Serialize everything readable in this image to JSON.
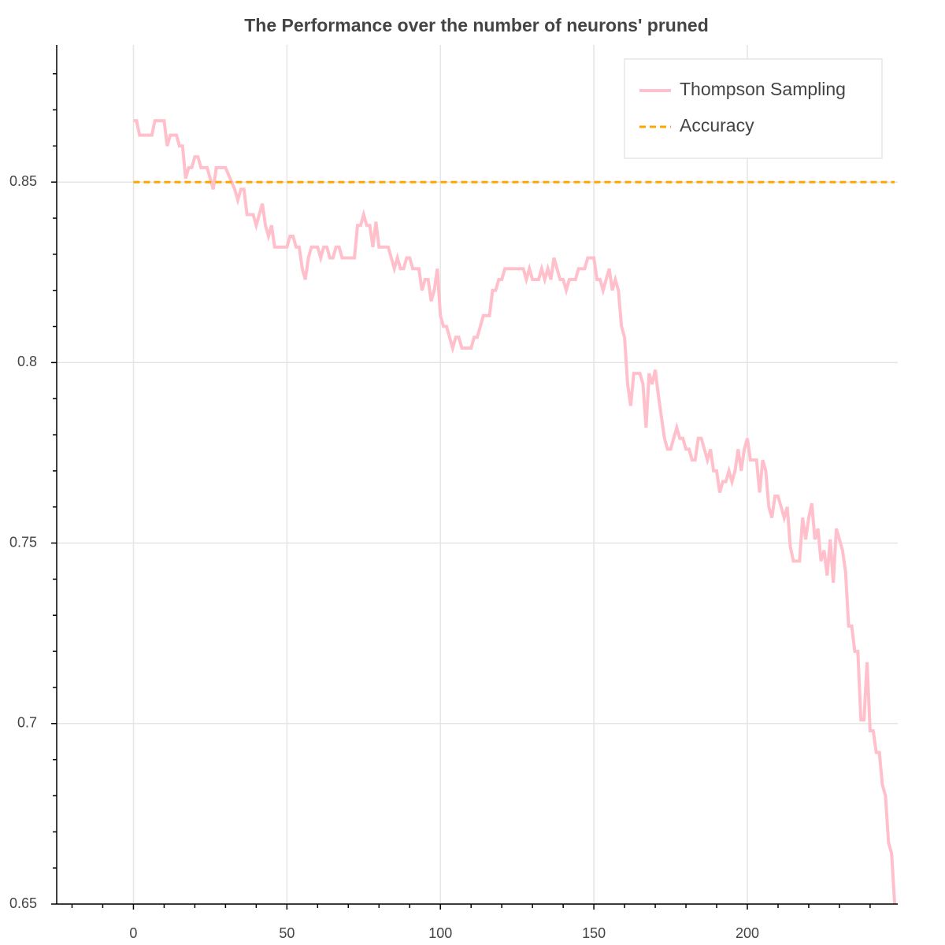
{
  "chart_data": {
    "type": "line",
    "title": "The Performance over the number of neurons' pruned",
    "xlim": [
      -25,
      249
    ],
    "ylim": [
      0.65,
      0.888
    ],
    "xticks": [
      0,
      50,
      100,
      150,
      200
    ],
    "yticks": [
      0.65,
      0.7,
      0.75,
      0.8,
      0.85
    ],
    "xminor_ticks": [
      -20,
      -10,
      10,
      20,
      30,
      40,
      60,
      70,
      80,
      90,
      110,
      120,
      130,
      140,
      160,
      170,
      180,
      190,
      210,
      220,
      230,
      240
    ],
    "yminor_ticks": [
      0.66,
      0.67,
      0.68,
      0.69,
      0.71,
      0.72,
      0.73,
      0.74,
      0.76,
      0.77,
      0.78,
      0.79,
      0.81,
      0.82,
      0.83,
      0.84,
      0.86,
      0.87,
      0.88
    ],
    "grid": true,
    "legend_position": "top-right",
    "series": [
      {
        "name": "Thompson Sampling",
        "color": "#ffc0cb",
        "dash": false,
        "x": [
          0,
          1,
          2,
          6,
          7,
          10,
          11,
          12,
          14,
          15,
          16,
          17,
          18,
          19,
          20,
          21,
          22,
          24,
          26,
          27,
          30,
          32,
          33,
          34,
          35,
          36,
          37,
          39,
          40,
          41,
          42,
          43,
          44,
          45,
          46,
          50,
          51,
          52,
          53,
          54,
          55,
          56,
          57,
          58,
          60,
          61,
          62,
          63,
          64,
          65,
          66,
          67,
          68,
          72,
          73,
          74,
          75,
          76,
          77,
          78,
          79,
          80,
          83,
          84,
          85,
          86,
          87,
          88,
          89,
          90,
          91,
          93,
          94,
          95,
          96,
          97,
          98,
          99,
          100,
          101,
          102,
          103,
          104,
          105,
          106,
          107,
          110,
          111,
          112,
          113,
          114,
          116,
          117,
          118,
          119,
          120,
          121,
          127,
          128,
          129,
          130,
          132,
          133,
          134,
          135,
          136,
          137,
          138,
          139,
          140,
          141,
          142,
          144,
          145,
          147,
          148,
          150,
          151,
          152,
          153,
          154,
          155,
          156,
          157,
          158,
          159,
          160,
          161,
          162,
          163,
          165,
          166,
          167,
          168,
          169,
          170,
          171,
          172,
          173,
          174,
          175,
          176,
          177,
          178,
          179,
          180,
          181,
          182,
          183,
          184,
          185,
          186,
          187,
          188,
          189,
          190,
          191,
          192,
          193,
          194,
          195,
          196,
          197,
          198,
          199,
          200,
          201,
          203,
          204,
          205,
          206,
          207,
          208,
          209,
          210,
          211,
          212,
          213,
          214,
          215,
          217,
          218,
          219,
          220,
          221,
          222,
          223,
          224,
          225,
          226,
          227,
          228,
          229,
          230,
          231,
          232,
          233,
          234,
          235,
          236,
          237,
          238,
          239,
          240,
          241,
          242,
          243,
          244,
          245,
          246,
          247,
          248
        ],
        "values": [
          0.867,
          0.867,
          0.863,
          0.863,
          0.867,
          0.867,
          0.86,
          0.863,
          0.863,
          0.86,
          0.86,
          0.851,
          0.854,
          0.854,
          0.857,
          0.857,
          0.854,
          0.854,
          0.848,
          0.854,
          0.854,
          0.85,
          0.848,
          0.845,
          0.848,
          0.848,
          0.841,
          0.841,
          0.838,
          0.841,
          0.844,
          0.838,
          0.835,
          0.838,
          0.832,
          0.832,
          0.835,
          0.835,
          0.832,
          0.832,
          0.826,
          0.823,
          0.829,
          0.832,
          0.832,
          0.829,
          0.832,
          0.832,
          0.829,
          0.829,
          0.832,
          0.832,
          0.829,
          0.829,
          0.838,
          0.838,
          0.841,
          0.838,
          0.838,
          0.832,
          0.839,
          0.832,
          0.832,
          0.829,
          0.826,
          0.829,
          0.826,
          0.826,
          0.829,
          0.829,
          0.826,
          0.826,
          0.82,
          0.823,
          0.823,
          0.817,
          0.82,
          0.826,
          0.813,
          0.81,
          0.81,
          0.807,
          0.804,
          0.807,
          0.807,
          0.804,
          0.804,
          0.807,
          0.807,
          0.81,
          0.813,
          0.813,
          0.82,
          0.82,
          0.823,
          0.823,
          0.826,
          0.826,
          0.823,
          0.826,
          0.823,
          0.823,
          0.826,
          0.823,
          0.826,
          0.823,
          0.829,
          0.826,
          0.823,
          0.823,
          0.82,
          0.823,
          0.823,
          0.826,
          0.826,
          0.829,
          0.829,
          0.823,
          0.823,
          0.82,
          0.823,
          0.826,
          0.82,
          0.823,
          0.82,
          0.81,
          0.807,
          0.794,
          0.788,
          0.797,
          0.797,
          0.794,
          0.782,
          0.797,
          0.794,
          0.798,
          0.791,
          0.785,
          0.779,
          0.776,
          0.776,
          0.779,
          0.782,
          0.779,
          0.779,
          0.776,
          0.776,
          0.773,
          0.773,
          0.779,
          0.779,
          0.776,
          0.773,
          0.776,
          0.77,
          0.77,
          0.764,
          0.767,
          0.767,
          0.77,
          0.767,
          0.77,
          0.776,
          0.77,
          0.776,
          0.779,
          0.773,
          0.773,
          0.764,
          0.773,
          0.77,
          0.76,
          0.757,
          0.763,
          0.763,
          0.76,
          0.757,
          0.76,
          0.749,
          0.745,
          0.745,
          0.757,
          0.751,
          0.757,
          0.761,
          0.751,
          0.754,
          0.745,
          0.748,
          0.741,
          0.751,
          0.739,
          0.754,
          0.751,
          0.748,
          0.742,
          0.727,
          0.727,
          0.72,
          0.72,
          0.701,
          0.701,
          0.717,
          0.698,
          0.698,
          0.692,
          0.692,
          0.683,
          0.68,
          0.667,
          0.664,
          0.65
        ]
      },
      {
        "name": "Accuracy",
        "color": "#ffa500",
        "dash": true,
        "x": [
          0,
          248
        ],
        "values": [
          0.85,
          0.85
        ]
      }
    ]
  }
}
